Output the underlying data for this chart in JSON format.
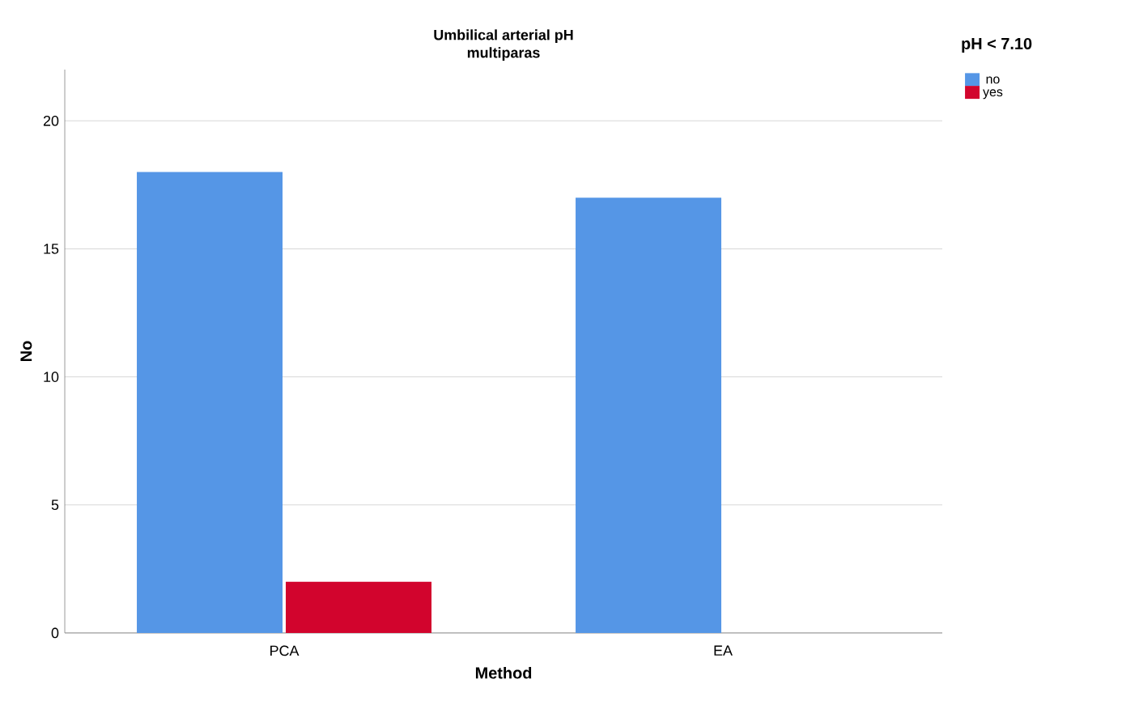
{
  "chart_data": {
    "type": "bar",
    "title": "Umbilical arterial pH\nmultiparas",
    "xlabel": "Method",
    "ylabel": "No",
    "legend_title": "pH < 7.10",
    "categories": [
      "PCA",
      "EA"
    ],
    "series": [
      {
        "name": "no",
        "color": "#5596e6",
        "values": [
          18,
          17
        ]
      },
      {
        "name": "yes",
        "color": "#d2042d",
        "values": [
          2,
          0
        ]
      }
    ],
    "ylim": [
      0,
      22
    ],
    "yticks": [
      0,
      5,
      10,
      15,
      20
    ],
    "grid": "y",
    "legend": "top right"
  }
}
